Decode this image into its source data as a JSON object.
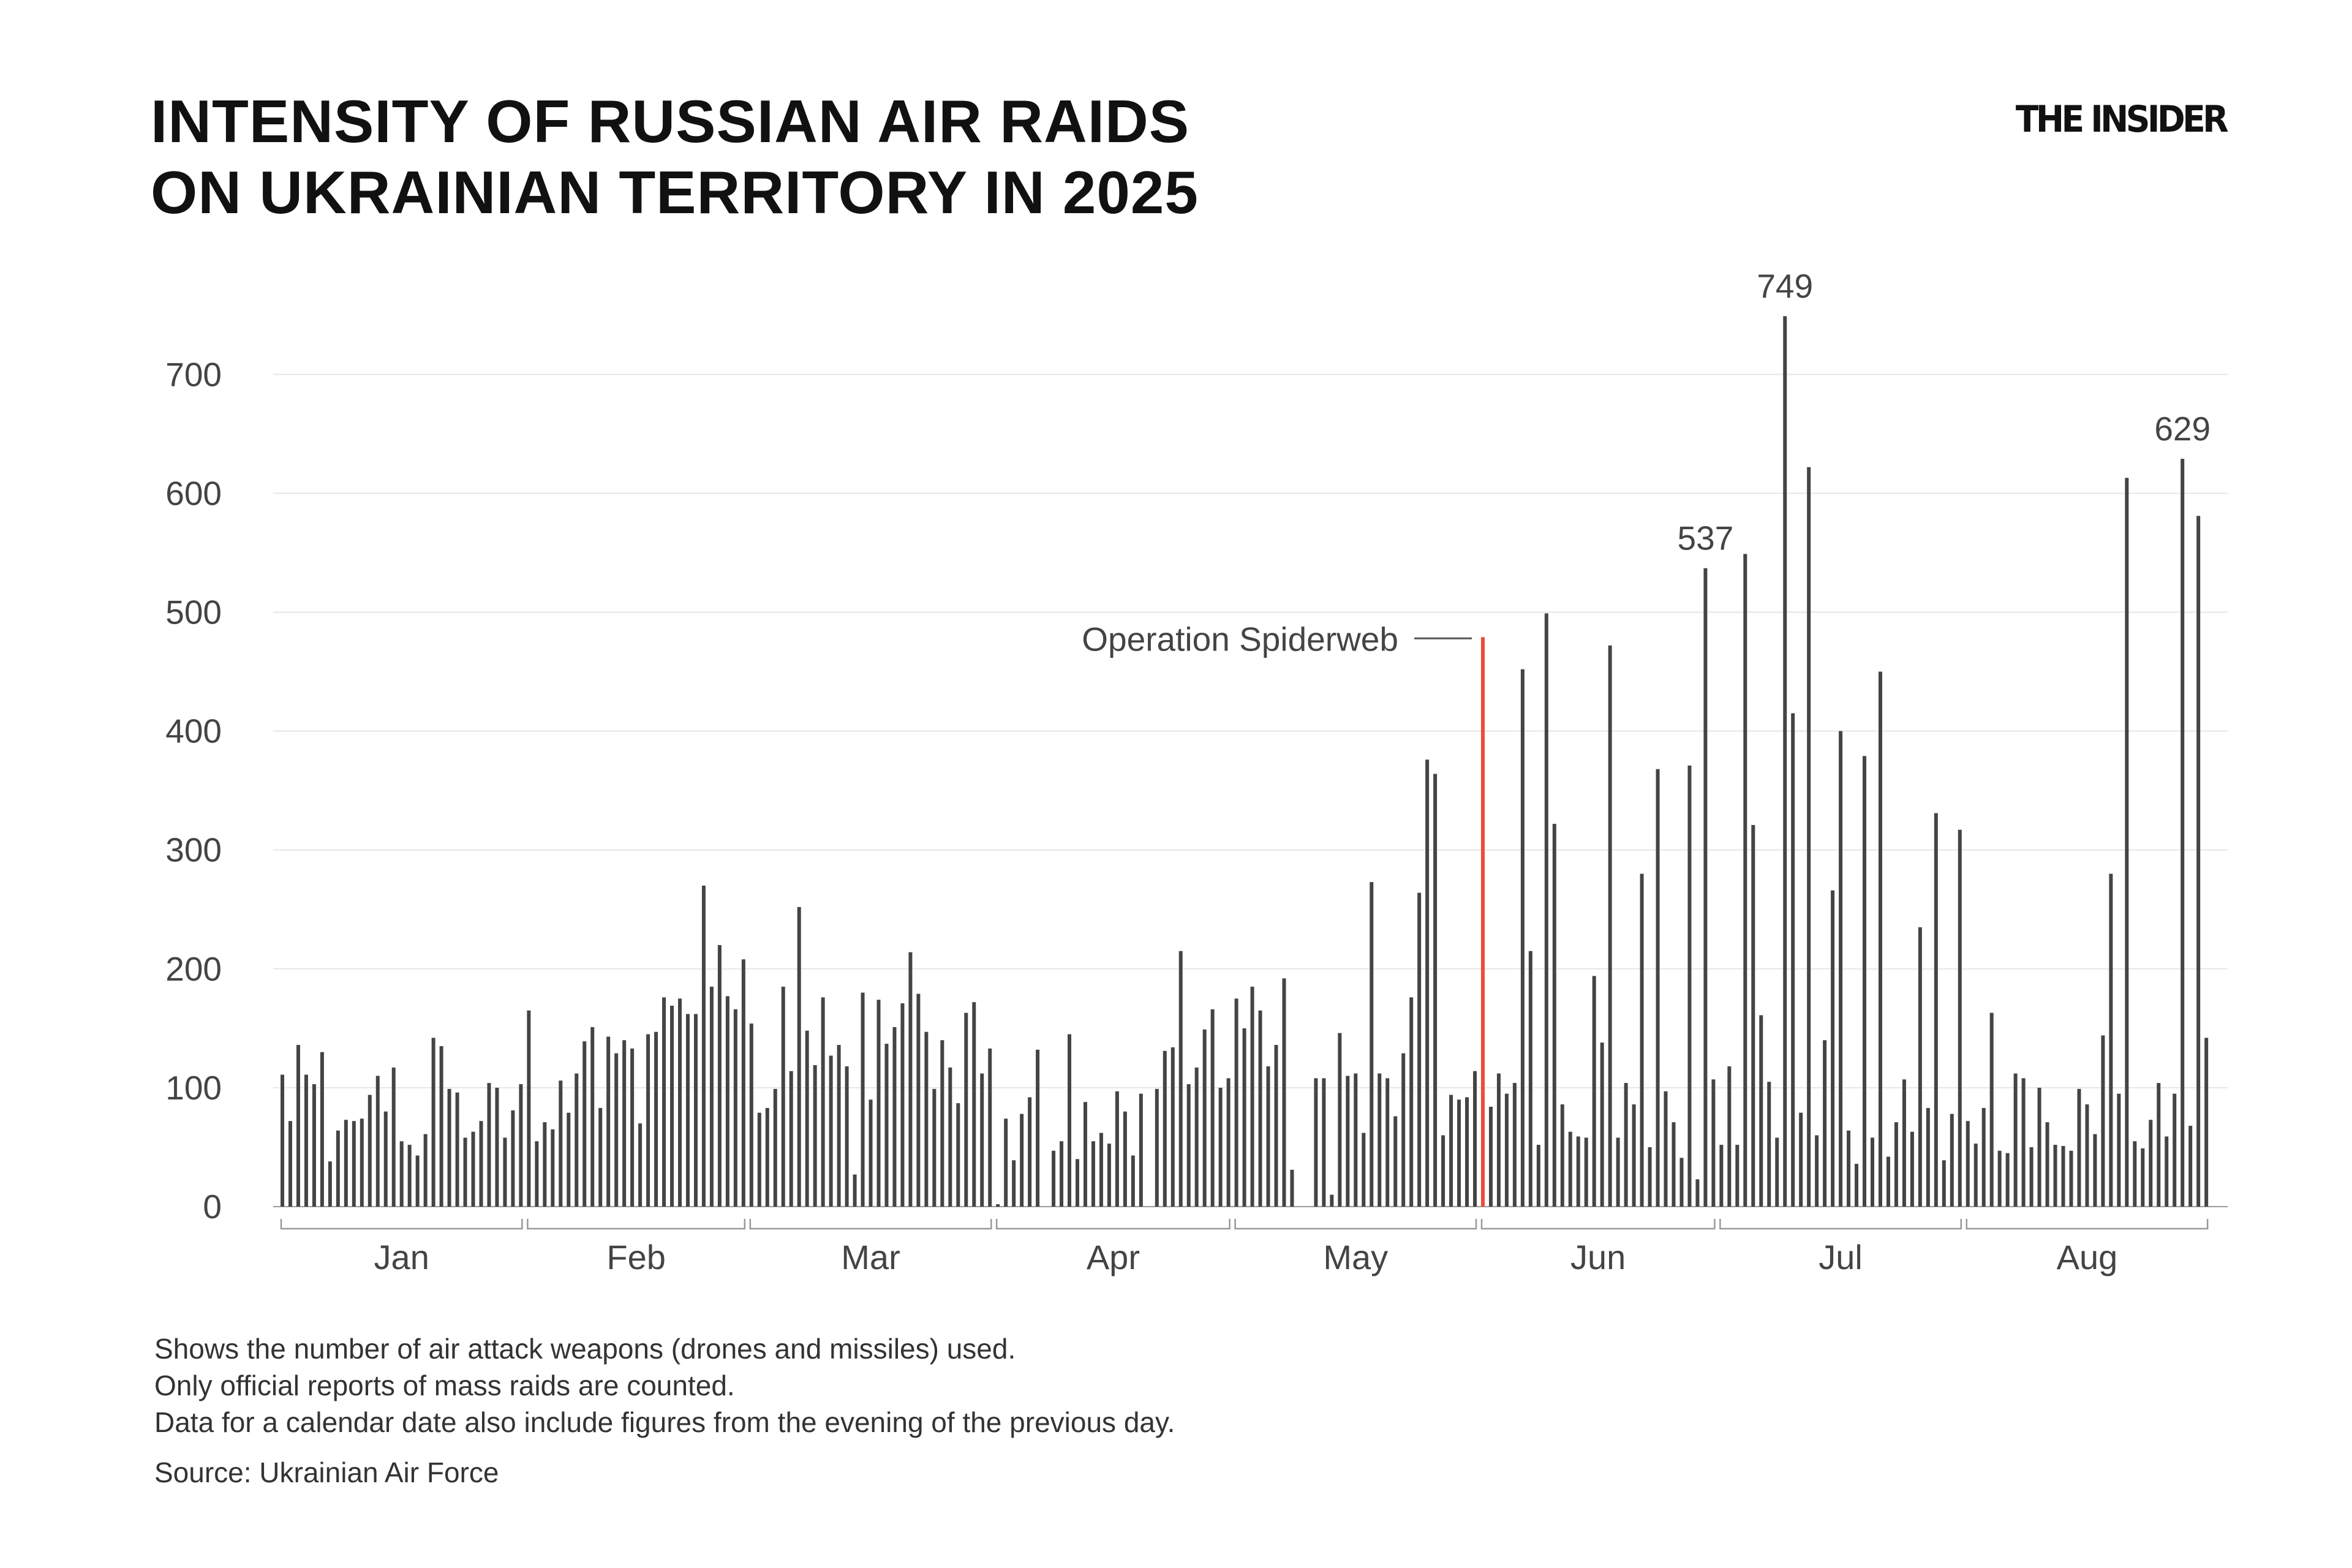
{
  "title": {
    "line1": "INTENSITY OF RUSSIAN AIR RAIDS",
    "line2": "ON UKRAINIAN TERRITORY IN 2025"
  },
  "logo": "THE INSIDER",
  "notes": [
    "Shows the number of air attack weapons (drones and missiles) used.",
    "Only official reports of mass raids are counted.",
    "Data for a calendar date also include figures from the evening of the previous day."
  ],
  "source": "Source: Ukrainian Air Force",
  "colors": {
    "bar": "#444444",
    "highlight": "#f04a3a",
    "grid": "#e6e6e6",
    "text": "#444444"
  },
  "chart_data": {
    "type": "bar",
    "title": "INTENSITY OF RUSSIAN AIR RAIDS ON UKRAINIAN TERRITORY IN 2025",
    "xlabel": "",
    "ylabel": "",
    "ylim": [
      0,
      760
    ],
    "yticks": [
      "0",
      "100",
      "200",
      "300",
      "400",
      "500",
      "600",
      "700"
    ],
    "grid": true,
    "months": [
      {
        "label": "Jan",
        "values": [
          111,
          72,
          136,
          111,
          103,
          130,
          38,
          64,
          73,
          72,
          74,
          94,
          110,
          80,
          117,
          55,
          52,
          43,
          61,
          142,
          135,
          99,
          96,
          58,
          63,
          72,
          104,
          100,
          58,
          81,
          103
        ]
      },
      {
        "label": "Feb",
        "values": [
          165,
          55,
          71,
          65,
          106,
          79,
          112,
          139,
          151,
          83,
          143,
          129,
          140,
          133,
          70,
          145,
          147,
          176,
          169,
          175,
          162,
          162,
          270,
          185,
          220,
          177,
          166,
          208
        ]
      },
      {
        "label": "Mar",
        "values": [
          154,
          79,
          83,
          99,
          185,
          114,
          252,
          148,
          119,
          176,
          127,
          136,
          118,
          27,
          180,
          90,
          174,
          137,
          151,
          171,
          214,
          179,
          147,
          99,
          140,
          117,
          87,
          163,
          172,
          112,
          133
        ]
      },
      {
        "label": "Apr",
        "values": [
          2,
          74,
          39,
          78,
          92,
          132,
          null,
          47,
          55,
          145,
          40,
          88,
          55,
          62,
          53,
          97,
          80,
          43,
          95,
          null,
          99,
          131,
          134,
          215,
          103,
          117,
          149,
          166,
          100,
          108
        ]
      },
      {
        "label": "May",
        "values": [
          175,
          150,
          185,
          165,
          118,
          136,
          192,
          31,
          null,
          null,
          108,
          108,
          10,
          146,
          110,
          112,
          62,
          273,
          112,
          108,
          76,
          129,
          176,
          264,
          376,
          364,
          60,
          94,
          90,
          92,
          114
        ]
      },
      {
        "label": "Jun",
        "values": [
          479,
          84,
          112,
          95,
          104,
          452,
          215,
          52,
          499,
          322,
          86,
          63,
          59,
          58,
          194,
          138,
          472,
          58,
          104,
          86,
          280,
          50,
          368,
          97,
          71,
          41,
          371,
          23,
          537,
          107
        ]
      },
      {
        "label": "Jul",
        "values": [
          52,
          118,
          52,
          549,
          321,
          161,
          105,
          58,
          749,
          415,
          79,
          622,
          60,
          140,
          266,
          400,
          64,
          36,
          379,
          58,
          450,
          42,
          71,
          107,
          63,
          235,
          83,
          331,
          39,
          78,
          317
        ]
      },
      {
        "label": "Aug",
        "values": [
          72,
          53,
          83,
          163,
          47,
          45,
          112,
          108,
          50,
          100,
          71,
          52,
          51,
          47,
          99,
          86,
          61,
          144,
          280,
          95,
          613,
          55,
          49,
          73,
          104,
          59,
          95,
          629,
          68,
          581,
          142
        ]
      }
    ],
    "highlight": {
      "month": "Jun",
      "day": 1,
      "label": "Operation Spiderweb"
    },
    "value_labels": [
      {
        "month": "Jun",
        "day": 29,
        "text": "537"
      },
      {
        "month": "Jul",
        "day": 9,
        "text": "749"
      },
      {
        "month": "Aug",
        "day": 28,
        "text": "629"
      }
    ]
  }
}
